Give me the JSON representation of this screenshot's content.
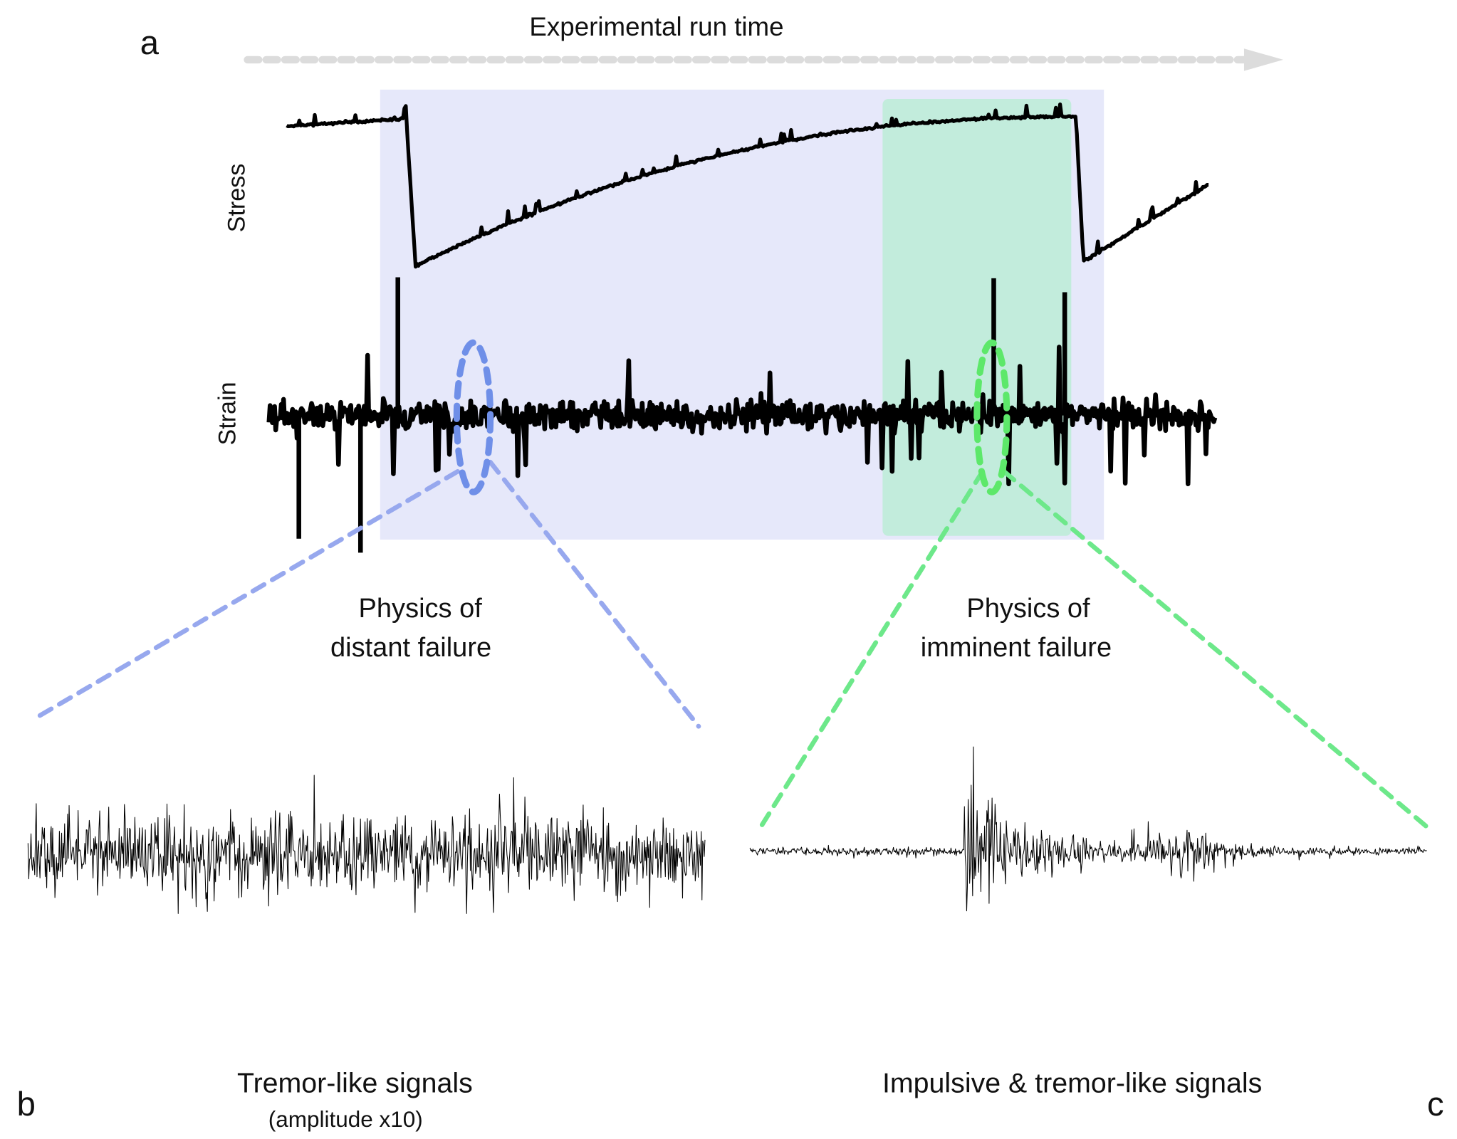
{
  "panel_a": {
    "label": "a",
    "arrow_label": "Experimental run time",
    "stress_label": "Stress",
    "strain_label": "Strain"
  },
  "annotations": {
    "distant": [
      "Physics of",
      "distant failure"
    ],
    "imminent": [
      "Physics of",
      "imminent failure"
    ]
  },
  "panel_b": {
    "label": "b",
    "caption": "Tremor-like signals",
    "note": "(amplitude x10)"
  },
  "panel_c": {
    "label": "c",
    "caption": "Impulsive & tremor-like signals"
  }
}
